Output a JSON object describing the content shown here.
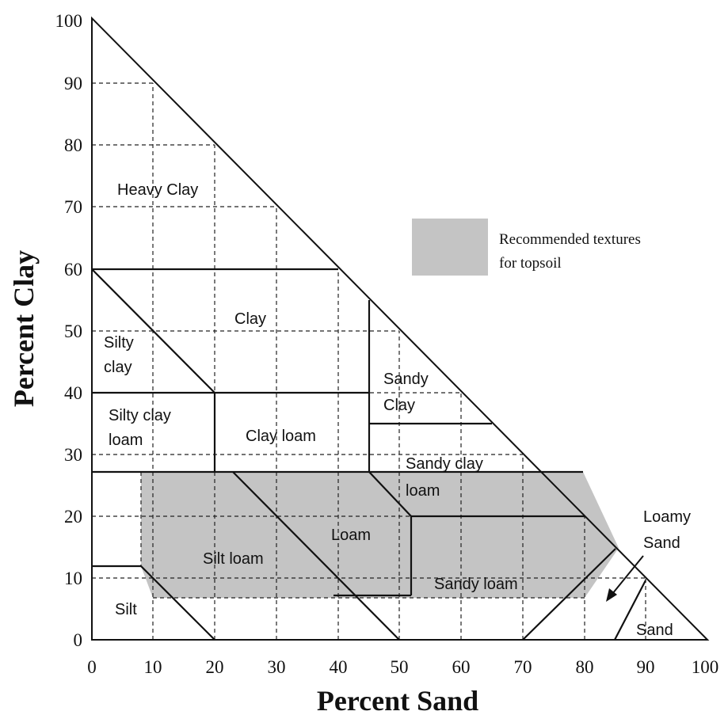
{
  "diagram": {
    "x_axis_title": "Percent Sand",
    "y_axis_title": "Percent Clay",
    "x_ticks": [
      "0",
      "10",
      "20",
      "30",
      "40",
      "50",
      "60",
      "70",
      "80",
      "90",
      "100"
    ],
    "y_ticks": [
      "0",
      "10",
      "20",
      "30",
      "40",
      "50",
      "60",
      "70",
      "80",
      "90",
      "100"
    ],
    "legend": {
      "line1": "Recommended textures",
      "line2": "for topsoil",
      "swatch_color": "#c4c4c4"
    },
    "regions": {
      "heavy_clay": "Heavy Clay",
      "clay": "Clay",
      "silty_clay_1": "Silty",
      "silty_clay_2": "clay",
      "sandy_clay_1": "Sandy",
      "sandy_clay_2": "Clay",
      "silty_clay_loam_1": "Silty clay",
      "silty_clay_loam_2": "loam",
      "clay_loam": "Clay loam",
      "sandy_clay_loam_1": "Sandy clay",
      "sandy_clay_loam_2": "loam",
      "loam": "Loam",
      "silt_loam": "Silt loam",
      "sandy_loam": "Sandy loam",
      "silt": "Silt",
      "loamy_sand_1": "Loamy",
      "loamy_sand_2": "Sand",
      "sand": "Sand"
    }
  }
}
